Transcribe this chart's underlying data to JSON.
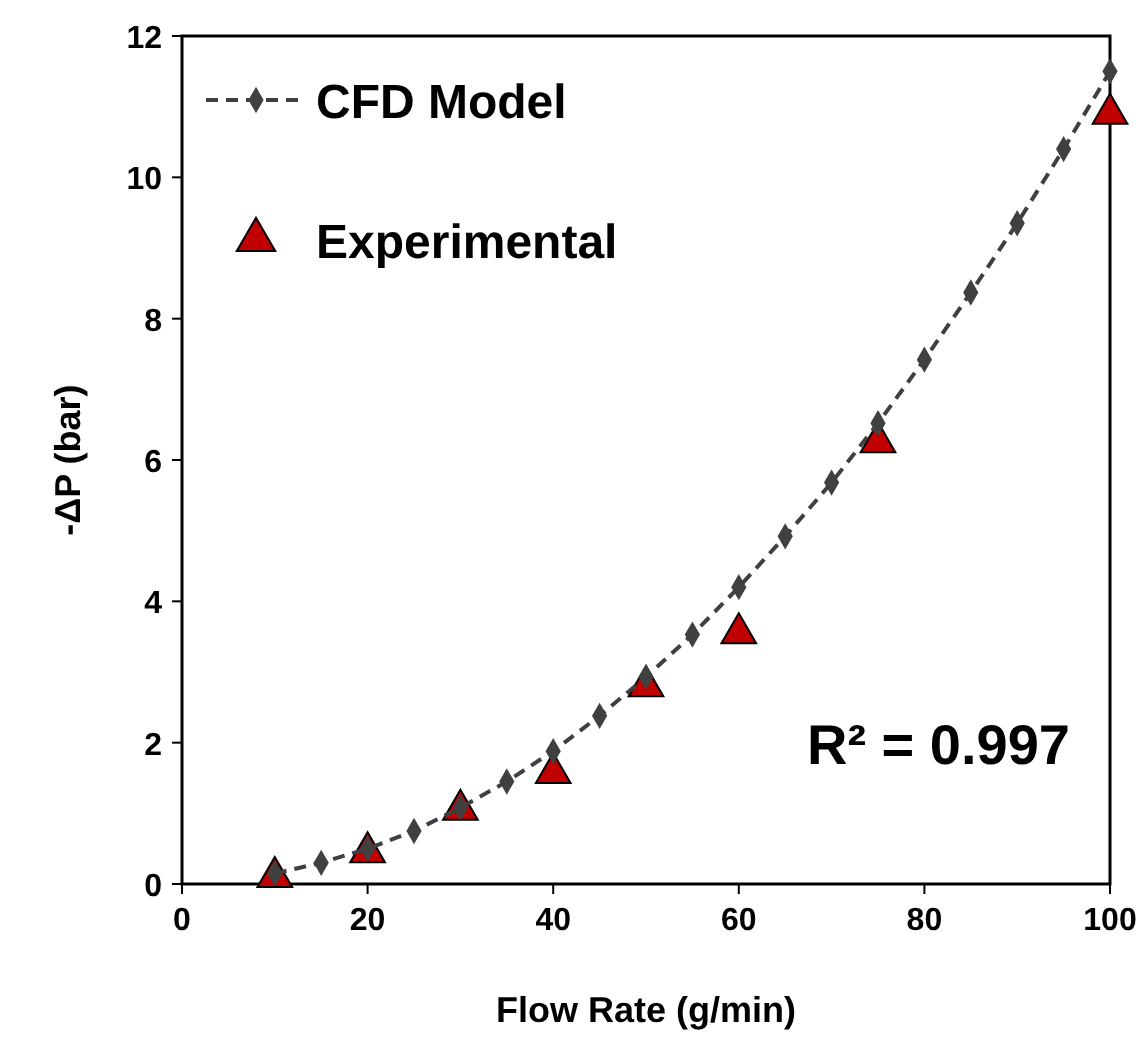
{
  "chart_data": {
    "type": "line",
    "xlabel": "Flow Rate (g/min)",
    "ylabel": "-ΔP (bar)",
    "xlim": [
      0,
      100
    ],
    "xticks": [
      0,
      20,
      40,
      60,
      80,
      100
    ],
    "ylim": [
      0,
      12
    ],
    "yticks": [
      0,
      2,
      4,
      6,
      8,
      10,
      12
    ],
    "grid": false,
    "legend": "top left",
    "series": [
      {
        "name": "CFD Model",
        "color": "#404040",
        "marker": "diamond",
        "line_style": "dashed",
        "x": [
          10,
          15,
          20,
          25,
          30,
          35,
          40,
          45,
          50,
          55,
          60,
          65,
          70,
          75,
          80,
          85,
          90,
          95,
          100
        ],
        "values": [
          0.15,
          0.3,
          0.5,
          0.75,
          1.08,
          1.45,
          1.88,
          2.38,
          2.93,
          3.53,
          4.2,
          4.92,
          5.68,
          6.52,
          7.42,
          8.37,
          9.35,
          10.4,
          11.5
        ]
      },
      {
        "name": "Experimental",
        "type": "scatter",
        "color": "#c00000",
        "marker": "triangle",
        "x": [
          10,
          20,
          30,
          40,
          50,
          60,
          75,
          100
        ],
        "values": [
          0.1,
          0.45,
          1.05,
          1.57,
          2.8,
          3.55,
          6.25,
          10.9
        ]
      }
    ],
    "annotations": [
      "R² = 0.997"
    ]
  }
}
